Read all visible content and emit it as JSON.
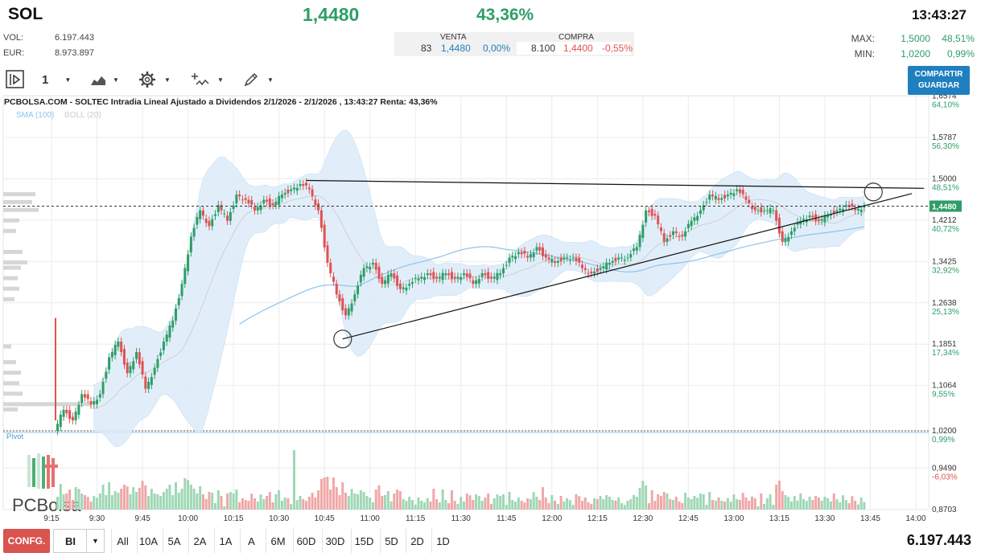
{
  "header": {
    "ticker": "SOL",
    "price": "1,4480",
    "change": "43,36%",
    "time": "13:43:27",
    "vol_label": "VOL:",
    "vol_value": "6.197.443",
    "eur_label": "EUR:",
    "eur_value": "8.973.897",
    "max_label": "MAX:",
    "max_value": "1,5000",
    "max_pct": "48,51%",
    "min_label": "MIN:",
    "min_value": "1,0200",
    "min_pct": "0,99%"
  },
  "book": {
    "venta_label": "VENTA",
    "compra_label": "COMPRA",
    "venta_qty": "83",
    "venta_price": "1,4480",
    "venta_pct": "0,00%",
    "compra_qty": "8.100",
    "compra_price": "1,4400",
    "compra_pct": "-0,55%"
  },
  "toolbar": {
    "interval": "1",
    "share_line1": "COMPARTIR",
    "share_line2": "GUARDAR"
  },
  "bottom": {
    "config_label": "CONFG.",
    "select_value": "BI",
    "periods": [
      "All",
      "10A",
      "5A",
      "2A",
      "1A",
      "A",
      "6M",
      "60D",
      "30D",
      "15D",
      "5D",
      "2D",
      "1D"
    ],
    "total_volume": "6.197.443"
  },
  "colors": {
    "up": "#2e9e66",
    "down": "#e05252",
    "band_fill": "#dcecfa",
    "sma": "#8cc4ec",
    "accent": "#1f7fbf"
  },
  "chart_data": {
    "type": "candlestick",
    "title": "PCBOLSA.COM - SOLTEC Intradia Lineal Ajustado a Dividendos 2/1/2026 - 2/1/2026 , 13:43:27 Renta: 43,36%",
    "legend": [
      "SMA (100)",
      "BOLL (20)"
    ],
    "pivot_label": "Pivot",
    "watermark": "PCBolsa",
    "x_ticks": [
      "9:15",
      "9:30",
      "9:45",
      "10:00",
      "10:15",
      "10:30",
      "10:45",
      "11:00",
      "11:15",
      "11:30",
      "11:45",
      "12:00",
      "12:15",
      "12:30",
      "12:45",
      "13:00",
      "13:15",
      "13:30",
      "13:45",
      "14:00"
    ],
    "y_ticks": [
      {
        "price": "1,6574",
        "pct": "64,10%"
      },
      {
        "price": "1,5787",
        "pct": "56,30%"
      },
      {
        "price": "1,5000",
        "pct": "48,51%"
      },
      {
        "price": "1,4212",
        "pct": "40,72%"
      },
      {
        "price": "1,3425",
        "pct": "32,92%"
      },
      {
        "price": "1,2638",
        "pct": "25,13%"
      },
      {
        "price": "1,1851",
        "pct": "17,34%"
      },
      {
        "price": "1,1064",
        "pct": "9,55%"
      },
      {
        "price": "1,0200",
        "pct": "0,99%"
      },
      {
        "price": "0,9490",
        "pct": "-6,03%"
      },
      {
        "price": "0,8703",
        "pct": ""
      }
    ],
    "last_price_label": "1,4480",
    "last_price": 1.448,
    "pivot_price": 1.02,
    "ylim": [
      0.87,
      1.66
    ],
    "trendlines": [
      {
        "from": [
          "10:39",
          1.497
        ],
        "to": [
          "13:50",
          1.485
        ]
      },
      {
        "from": [
          "10:51",
          1.195
        ],
        "to": [
          "13:46",
          1.475
        ]
      }
    ],
    "circles": [
      [
        "10:51",
        1.195
      ],
      [
        "13:46",
        1.475
      ]
    ],
    "price_path": [
      [
        "9:19",
        1.06
      ],
      [
        "9:22",
        1.04
      ],
      [
        "9:25",
        1.09
      ],
      [
        "9:28",
        1.07
      ],
      [
        "9:31",
        1.09
      ],
      [
        "9:34",
        1.16
      ],
      [
        "9:37",
        1.19
      ],
      [
        "9:40",
        1.13
      ],
      [
        "9:43",
        1.17
      ],
      [
        "9:46",
        1.1
      ],
      [
        "9:49",
        1.14
      ],
      [
        "9:52",
        1.19
      ],
      [
        "9:55",
        1.23
      ],
      [
        "9:58",
        1.3
      ],
      [
        "10:01",
        1.39
      ],
      [
        "10:04",
        1.44
      ],
      [
        "10:07",
        1.41
      ],
      [
        "10:10",
        1.45
      ],
      [
        "10:13",
        1.42
      ],
      [
        "10:16",
        1.47
      ],
      [
        "10:19",
        1.46
      ],
      [
        "10:22",
        1.44
      ],
      [
        "10:25",
        1.46
      ],
      [
        "10:28",
        1.45
      ],
      [
        "10:31",
        1.47
      ],
      [
        "10:34",
        1.48
      ],
      [
        "10:37",
        1.49
      ],
      [
        "10:40",
        1.48
      ],
      [
        "10:43",
        1.44
      ],
      [
        "10:46",
        1.34
      ],
      [
        "10:49",
        1.28
      ],
      [
        "10:52",
        1.24
      ],
      [
        "10:55",
        1.28
      ],
      [
        "10:58",
        1.33
      ],
      [
        "11:01",
        1.34
      ],
      [
        "11:04",
        1.3
      ],
      [
        "11:07",
        1.32
      ],
      [
        "11:10",
        1.29
      ],
      [
        "11:13",
        1.3
      ],
      [
        "11:16",
        1.31
      ],
      [
        "11:19",
        1.32
      ],
      [
        "11:22",
        1.31
      ],
      [
        "11:25",
        1.32
      ],
      [
        "11:28",
        1.31
      ],
      [
        "11:31",
        1.32
      ],
      [
        "11:34",
        1.3
      ],
      [
        "11:37",
        1.32
      ],
      [
        "11:40",
        1.31
      ],
      [
        "11:43",
        1.32
      ],
      [
        "11:46",
        1.35
      ],
      [
        "11:49",
        1.36
      ],
      [
        "11:52",
        1.35
      ],
      [
        "11:55",
        1.37
      ],
      [
        "11:58",
        1.35
      ],
      [
        "12:01",
        1.34
      ],
      [
        "12:04",
        1.35
      ],
      [
        "12:07",
        1.35
      ],
      [
        "12:10",
        1.33
      ],
      [
        "12:13",
        1.32
      ],
      [
        "12:16",
        1.33
      ],
      [
        "12:19",
        1.34
      ],
      [
        "12:22",
        1.35
      ],
      [
        "12:25",
        1.35
      ],
      [
        "12:28",
        1.37
      ],
      [
        "12:31",
        1.44
      ],
      [
        "12:34",
        1.43
      ],
      [
        "12:37",
        1.38
      ],
      [
        "12:40",
        1.4
      ],
      [
        "12:43",
        1.39
      ],
      [
        "12:46",
        1.42
      ],
      [
        "12:49",
        1.44
      ],
      [
        "12:52",
        1.47
      ],
      [
        "12:55",
        1.46
      ],
      [
        "12:58",
        1.47
      ],
      [
        "13:01",
        1.48
      ],
      [
        "13:04",
        1.46
      ],
      [
        "13:07",
        1.44
      ],
      [
        "13:10",
        1.44
      ],
      [
        "13:13",
        1.44
      ],
      [
        "13:16",
        1.38
      ],
      [
        "13:19",
        1.4
      ],
      [
        "13:22",
        1.42
      ],
      [
        "13:25",
        1.43
      ],
      [
        "13:28",
        1.42
      ],
      [
        "13:31",
        1.43
      ],
      [
        "13:34",
        1.44
      ],
      [
        "13:37",
        1.45
      ],
      [
        "13:40",
        1.44
      ],
      [
        "13:43",
        1.448
      ]
    ],
    "volume_by_candle_index_relative": "relative bar heights, see script"
  }
}
